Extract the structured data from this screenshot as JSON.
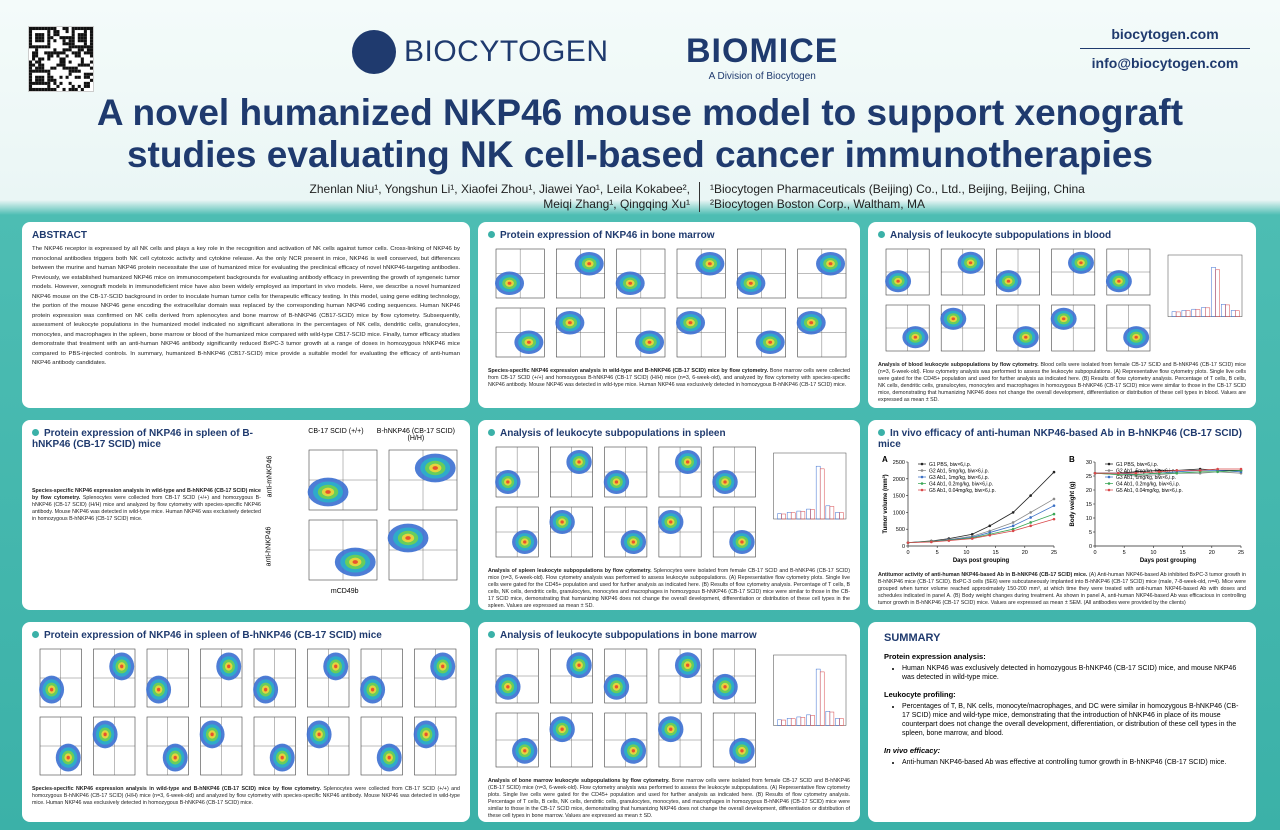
{
  "header": {
    "title": "A novel humanized NKP46 mouse model to support xenograft studies evaluating NK cell-based cancer immunotherapies",
    "logo_left": "BIOCYTOGEN",
    "logo_right": "BIOMICE",
    "logo_right_sub": "A Division of Biocytogen",
    "website": "biocytogen.com",
    "email": "info@biocytogen.com",
    "authors": [
      "Zhenlan Niu¹, Yongshun Li¹, Xiaofei Zhou¹, Jiawei Yao¹, Leila Kokabee²,",
      "Meiqi Zhang¹, Qingqing Xu¹"
    ],
    "affiliations": [
      "¹Biocytogen Pharmaceuticals (Beijing) Co., Ltd., Beijing, Beijing, China",
      "²Biocytogen Boston Corp., Waltham, MA"
    ]
  },
  "abstract": {
    "title": "ABSTRACT",
    "text": "The NKP46 receptor is expressed by all NK cells and plays a key role in the recognition and activation of NK cells against tumor cells. Cross-linking of NKP46 by monoclonal antibodies triggers both NK cell cytotoxic activity and cytokine release. As the only NCR present in mice, NKP46 is well conserved, but differences between the murine and human NKP46 protein necessitate the use of humanized mice for evaluating the preclinical efficacy of novel hNKP46-targeting antibodies. Previously, we established humanized NKP46 mice on immunocompetent backgrounds for evaluating antibody efficacy in preventing the growth of syngeneic tumor models. However, xenograft models in immunodeficient mice have also been widely employed as important in vivo models. Here, we describe a novel humanized NKP46 mouse on the CB-17-SCID background in order to inoculate human tumor cells for therapeutic efficacy testing. In this model, using gene editing technology, the portion of the mouse NKP46 gene encoding the extracellular domain was replaced by the corresponding human NKP46 coding sequences. Human NKP46 protein expression was confirmed on NK cells derived from splenocytes and bone marrow of B-hNKP46 (CB17-SCID) mice by flow cytometry. Subsequently, assessment of leukocyte populations in the humanized model indicated no significant alterations in the percentages of NK cells, dendritic cells, granulocytes, monocytes, and macrophages in the spleen, bone marrow or blood of the humanized mice compared with wild-type CB17-SCID mice. Finally, tumor efficacy studies demonstrate that treatment with an anti-human NKP46 antibody significantly reduced BxPC-3 tumor growth at a range of doses in homozygous hNKP46 mice compared to PBS-injected controls. In summary, humanized B-hNKP46 (CB17-SCID) mice provide a suitable model for evaluating the efficacy of anti-human NKP46 antibody candidates."
  },
  "panels": [
    {
      "title": "Protein expression of NKP46 in bone marrow",
      "bold": "Species-specific NKP46 expression analysis in wild-type and B-hNKP46 (CB-17 SCID) mice by flow cytometry.",
      "text": "Bone marrow cells were collected from CB-17 SCID (+/+) and homozygous B-hNKP46 (CB-17 SCID) (H/H) mice (n=3, 6-week-old), and analyzed by flow cytometry with species-specific NKP46 antibody. Mouse NKP46 was detected in wild-type mice. Human NKP46 was exclusively detected in homozygous B-hNKP46 (CB-17 SCID) mice."
    },
    {
      "title": "Analysis of leukocyte subpopulations in blood",
      "bold": "Analysis of blood leukocyte subpopulations by flow cytometry.",
      "text": "Blood cells were isolated from female CB-17 SCID and B-hNKP46 (CB-17 SCID) mice (n=3, 6-week-old). Flow cytometry analysis was performed to assess the leukocyte subpopulations. (A) Representative flow cytometry plots. Single live cells were gated for the CD45+ population and used for further analysis as indicated here. (B) Results of flow cytometry analysis. Percentage of T cells, B cells, NK cells, dendritic cells, granulocytes, monocytes and macrophages in homozygous B-hNKP46 (CB-17 SCID) mice were similar to those in the CB-17 SCID mice, demonstrating that humanizing NKP46 does not change the overall development, differentiation or distribution of these cell types in blood. Values are expressed as mean ± SD."
    },
    {
      "title": "Protein expression of NKP46 in spleen of B-hNKP46 (CB-17 SCID) mice",
      "bold": "Species-specific NKP46 expression analysis in wild-type and B-hNKP46 (CB-17 SCID) mice by flow cytometry.",
      "text": "Splenocytes were collected from CB-17 SCID (+/+) and homozygous B-hNKP46 (CB-17 SCID) (H/H) mice and analyzed by flow cytometry with species-specific NKP46 antibody. Mouse NKP46 was detected in wild-type mice. Human NKP46 was exclusively detected in homozygous B-hNKP46 (CB-17 SCID) mice.",
      "labels": [
        "CB-17 SCID (+/+)",
        "B-hNKP46 (CB-17 SCID) (H/H)",
        "anti-mNKP46",
        "anti-hNKP46",
        "mCD49b"
      ]
    },
    {
      "title": "Analysis of leukocyte subpopulations in spleen",
      "bold": "Analysis of spleen leukocyte subpopulations by flow cytometry.",
      "text": "Splenocytes were isolated from female CB-17 SCID and B-hNKP46 (CB-17 SCID) mice (n=3, 6-week-old). Flow cytometry analysis was performed to assess leukocyte subpopulations. (A) Representative flow cytometry plots. Single live cells were gated for the CD45+ population and used for further analysis as indicated here. (B) Results of flow cytometry analysis. Percentage of T cells, B cells, NK cells, dendritic cells, granulocytes, monocytes and macrophages in homozygous B-hNKP46 (CB-17 SCID) mice were similar to those in the CB-17 SCID mice, demonstrating that humanizing NKP46 does not change the overall development, differentiation or distribution of these cell types in the spleen. Values are expressed as mean ± SD."
    },
    {
      "title": "In vivo efficacy of anti-human NKP46-based Ab in B-hNKP46 (CB-17 SCID) mice",
      "bold": "Antitumor activity of anti-human NKP46-based Ab in B-hNKP46 (CB-17 SCID) mice.",
      "text": "(A) Anti-human NKP46-based Ab inhibited BxPC-3 tumor growth in B-hNKP46 mice (CB-17 SCID). BxPC-3 cells (5E6) were subcutaneously implanted into B-hNKP46 (CB-17 SCID) mice (male, 7-8-week-old, n=4). Mice were grouped when tumor volume reached approximately 150-200 mm³, at which time they were treated with anti-human NKP46-based Ab with doses and schedules indicated in panel A. (B) Body weight changes during treatment. As shown in panel A, anti-human NKP46-based Ab was efficacious in controlling tumor growth in B-hNKP46 (CB-17 SCID) mice. Values are expressed as mean ± SEM. (All antibodies were provided by the clients)"
    },
    {
      "title": "Protein expression of NKP46 in spleen of B-hNKP46 (CB-17 SCID) mice",
      "bold": "Species-specific NKP46 expression analysis in wild-type and B-hNKP46 (CB-17 SCID) mice by flow cytometry.",
      "text": "Splenocytes were collected from CB-17 SCID (+/+) and homozygous B-hNKP46 (CB-17 SCID) (H/H) mice (n=3, 6-week-old) and analyzed by flow cytometry with species-specific NKP46 antibody. Mouse NKP46 was detected in wild-type mice. Human NKP46 was exclusively detected in homozygous B-hNKP46 (CB-17 SCID) mice."
    },
    {
      "title": "Analysis of leukocyte subpopulations in bone marrow",
      "bold": "Analysis of bone marrow leukocyte subpopulations by flow cytometry.",
      "text": "Bone marrow cells were isolated from female CB-17 SCID and B-hNKP46 (CB-17 SCID) mice (n=3, 6-week-old). Flow cytometry analysis was performed to assess the leukocyte subpopulations. (A) Representative flow cytometry plots. Single live cells were gated for the CD45+ population and used for further analysis as indicated here. (B) Results of flow cytometry analysis. Percentage of T cells, B cells, NK cells, dendritic cells, granulocytes, monocytes, and macrophages in homozygous B-hNKP46 (CB-17 SCID) mice were similar to those in the CB-17 SCID mice, demonstrating that humanizing NKP46 does not change the overall development, differentiation or distribution of these cell types in bone marrow. Values are expressed as mean ± SD."
    }
  ],
  "summary": {
    "title": "SUMMARY",
    "sections": [
      {
        "heading": "Protein expression analysis:",
        "bullets": [
          "Human NKP46 was exclusively detected in homozygous B-hNKP46 (CB-17 SCID) mice, and mouse NKP46 was detected in wild-type mice."
        ]
      },
      {
        "heading": "Leukocyte profiling:",
        "bullets": [
          "Percentages of T, B, NK cells, monocyte/macrophages, and DC were similar in homozygous B-hNKP46 (CB-17 SCID) mice and wild-type mice, demonstrating that the introduction of hNKP46 in place of its mouse counterpart does not change the overall development, differentiation, or distribution of these cell types in the spleen, bone marrow, and blood."
        ]
      },
      {
        "heading": "In vivo efficacy:",
        "bullets": [
          "Anti-human NKP46-based Ab was effective at controlling tumor growth in B-hNKP46 (CB-17 SCID) mice."
        ]
      }
    ]
  },
  "chart_data": [
    {
      "type": "line",
      "label": "A",
      "ylabel": "Tumor volume (mm³)",
      "xlabel": "Days post grouping",
      "x": [
        0,
        4,
        7,
        11,
        14,
        18,
        21,
        25
      ],
      "xlim": [
        0,
        25
      ],
      "xticks": [
        0,
        5,
        10,
        15,
        20,
        25
      ],
      "ylim": [
        0,
        2500
      ],
      "yticks": [
        0,
        500,
        1000,
        1500,
        2000,
        2500
      ],
      "series": [
        {
          "name": "G1 PBS, biw×6,i.p.",
          "color": "#222222",
          "values": [
            100,
            150,
            220,
            350,
            600,
            1000,
            1500,
            2200
          ]
        },
        {
          "name": "G2 Ab1, 5mg/kg, biw×6,i.p.",
          "color": "#8a8a8a",
          "values": [
            100,
            140,
            190,
            290,
            450,
            700,
            1000,
            1400
          ]
        },
        {
          "name": "G3 Ab1, 1mg/kg, biw×6,i.p.",
          "color": "#3a6fc4",
          "values": [
            100,
            130,
            180,
            260,
            400,
            600,
            850,
            1200
          ]
        },
        {
          "name": "G4 Ab1, 0.2mg/kg, biw×6,i.p.",
          "color": "#3aa655",
          "values": [
            100,
            130,
            170,
            240,
            350,
            500,
            700,
            950
          ]
        },
        {
          "name": "G5 Ab1, 0.04mg/kg, biw×6,i.p.",
          "color": "#d9484a",
          "values": [
            100,
            120,
            160,
            220,
            320,
            450,
            600,
            800
          ]
        }
      ]
    },
    {
      "type": "line",
      "label": "B",
      "ylabel": "Body weight (g)",
      "xlabel": "Days post grouping",
      "x": [
        0,
        4,
        7,
        11,
        14,
        18,
        21,
        25
      ],
      "xlim": [
        0,
        25
      ],
      "xticks": [
        0,
        5,
        10,
        15,
        20,
        25
      ],
      "ylim": [
        0,
        30
      ],
      "yticks": [
        0,
        5,
        10,
        15,
        20,
        25,
        30
      ],
      "series": [
        {
          "name": "G1 PBS, biw×6,i.p.",
          "color": "#222222",
          "values": [
            26,
            26,
            26.5,
            27,
            27,
            27.5,
            27,
            27
          ]
        },
        {
          "name": "G2 Ab1, 5mg/kg, biw×6,i.p.",
          "color": "#8a8a8a",
          "values": [
            26,
            25.5,
            25,
            25.5,
            26,
            26,
            26.5,
            26
          ]
        },
        {
          "name": "G3 Ab1, 1mg/kg, biw×6,i.p.",
          "color": "#3a6fc4",
          "values": [
            26,
            26,
            25.5,
            26,
            26.5,
            27,
            27,
            26.5
          ]
        },
        {
          "name": "G4 Ab1, 0.2mg/kg, biw×6,i.p.",
          "color": "#3aa655",
          "values": [
            26,
            25.5,
            25.5,
            26,
            26,
            26.5,
            26.5,
            27
          ]
        },
        {
          "name": "G5 Ab1, 0.04mg/kg, biw×6,i.p.",
          "color": "#d9484a",
          "values": [
            26,
            26,
            26,
            26.5,
            27,
            27,
            27.5,
            27.5
          ]
        }
      ]
    }
  ]
}
